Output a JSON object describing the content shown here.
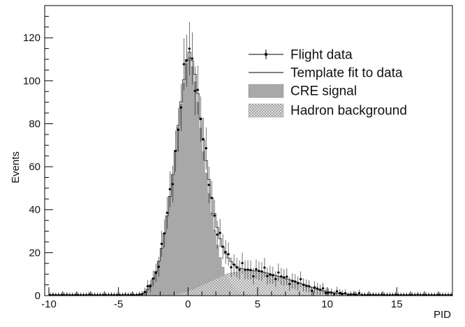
{
  "chart_data": {
    "type": "histogram",
    "xlabel": "PID",
    "ylabel": "Events",
    "xlim": [
      -10.3,
      19
    ],
    "ylim": [
      0,
      135
    ],
    "grid": false,
    "legend_position": "top-right",
    "x_ticks": [
      -10,
      -5,
      0,
      5,
      10,
      15
    ],
    "x_tick_labels": [
      "-10",
      "-5",
      "0",
      "5",
      "10",
      "15"
    ],
    "y_ticks": [
      0,
      20,
      40,
      60,
      80,
      100,
      120
    ],
    "y_tick_labels": [
      "0",
      "20",
      "40",
      "60",
      "80",
      "100",
      "120"
    ],
    "bin_width": 0.2,
    "bin_range": [
      -10.0,
      19.0
    ],
    "legend": [
      {
        "label": "Flight data",
        "style": "points-with-error-bars"
      },
      {
        "label": "Template fit to data",
        "style": "line"
      },
      {
        "label": "CRE signal",
        "style": "gray-fill"
      },
      {
        "label": "Hadron background",
        "style": "hatched-fill"
      }
    ],
    "series": [
      {
        "name": "CRE signal",
        "shape": "peaked distribution",
        "points": [
          [
            -4.0,
            0
          ],
          [
            -3.4,
            0.5
          ],
          [
            -3.0,
            2
          ],
          [
            -2.6,
            6
          ],
          [
            -2.2,
            13
          ],
          [
            -1.8,
            25
          ],
          [
            -1.4,
            41
          ],
          [
            -1.0,
            61
          ],
          [
            -0.6,
            84
          ],
          [
            -0.2,
            104
          ],
          [
            0.0,
            112
          ],
          [
            0.2,
            110
          ],
          [
            0.6,
            96
          ],
          [
            1.0,
            72
          ],
          [
            1.4,
            52
          ],
          [
            1.8,
            34
          ],
          [
            2.2,
            20
          ],
          [
            2.6,
            11
          ],
          [
            3.0,
            6
          ],
          [
            3.4,
            3
          ],
          [
            3.8,
            1.2
          ],
          [
            4.4,
            0.3
          ],
          [
            5.0,
            0
          ]
        ]
      },
      {
        "name": "Hadron background",
        "shape": "broad distribution",
        "points": [
          [
            -1.6,
            0
          ],
          [
            -1.0,
            0.5
          ],
          [
            0.0,
            2
          ],
          [
            1.0,
            5
          ],
          [
            2.0,
            8
          ],
          [
            3.0,
            10.5
          ],
          [
            4.0,
            11.5
          ],
          [
            5.0,
            11.5
          ],
          [
            6.0,
            10
          ],
          [
            7.0,
            8
          ],
          [
            8.0,
            6
          ],
          [
            9.0,
            3.5
          ],
          [
            10.0,
            1.8
          ],
          [
            11.0,
            0.9
          ],
          [
            12.0,
            0.5
          ],
          [
            13.0,
            0.2
          ],
          [
            14.0,
            0
          ]
        ]
      },
      {
        "name": "Template fit to data",
        "shape": "CRE signal plus hadron background"
      },
      {
        "name": "Flight data",
        "shape": "fit value with a deterministic wiggle; error bars ≈ √N",
        "background_level": 0.3,
        "error_scale": 1.1
      }
    ]
  }
}
